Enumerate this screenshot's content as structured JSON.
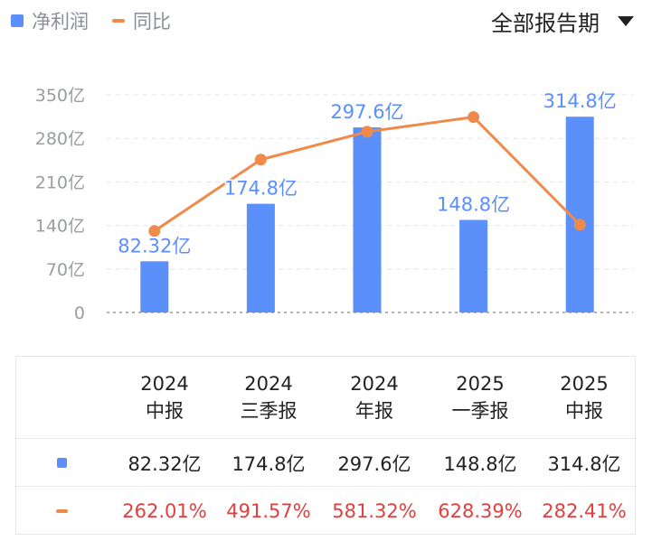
{
  "legend": {
    "items": [
      {
        "label": "净利润",
        "color": "#5b8ff9",
        "kind": "square"
      },
      {
        "label": "同比",
        "color": "#f08a4b",
        "kind": "line"
      }
    ]
  },
  "period_selector": {
    "label": "全部报告期"
  },
  "chart_data": {
    "type": "bar",
    "categories": [
      "2024 中报",
      "2024 三季报",
      "2024 年报",
      "2025 一季报",
      "2025 中报"
    ],
    "y_ticks": [
      "350亿",
      "280亿",
      "210亿",
      "140亿",
      "70亿",
      "0"
    ],
    "ylim": [
      0,
      350
    ],
    "y_unit": "亿",
    "grid": true,
    "series": [
      {
        "name": "净利润",
        "type": "bar",
        "color": "#5b8ff9",
        "values": [
          82.32,
          174.8,
          297.6,
          148.8,
          314.8
        ],
        "labels": [
          "82.32亿",
          "174.8亿",
          "297.6亿",
          "148.8亿",
          "314.8亿"
        ]
      },
      {
        "name": "同比",
        "type": "line",
        "color": "#f08a4b",
        "unit": "%",
        "values": [
          262.01,
          491.57,
          581.32,
          628.39,
          282.41
        ],
        "ylim": [
          0,
          700
        ]
      }
    ]
  },
  "table": {
    "header": [
      {
        "year": "2024",
        "period": "中报"
      },
      {
        "year": "2024",
        "period": "三季报"
      },
      {
        "year": "2024",
        "period": "年报"
      },
      {
        "year": "2025",
        "period": "一季报"
      },
      {
        "year": "2025",
        "period": "中报"
      }
    ],
    "profit_row": [
      "82.32亿",
      "174.8亿",
      "297.6亿",
      "148.8亿",
      "314.8亿"
    ],
    "yoy_row": [
      "262.01%",
      "491.57%",
      "581.32%",
      "628.39%",
      "282.41%"
    ],
    "yoy_color": "#e0403f"
  }
}
